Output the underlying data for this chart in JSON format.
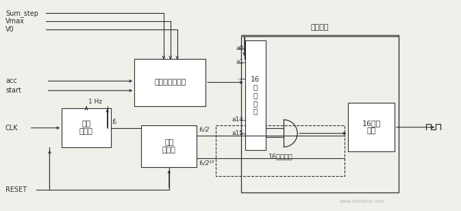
{
  "bg_color": "#f0f0eb",
  "line_color": "#2a2a2a",
  "box_color": "#ffffff",
  "title_text": "反馈脉冲",
  "signals_top": [
    "Sum_step",
    "Vmax",
    "V0"
  ],
  "signals_mid": [
    "acc",
    "start"
  ],
  "signal_clk": "CLK",
  "signal_reset": "RESET",
  "box_pulse_rate": "脉冲速率发生器",
  "box_clock": "时钟\n发生器",
  "box_pulse_gen": "脉冲\n发生器",
  "box_register": "16\n位\n寄\n存\n器",
  "box_or": "16个或\n逻辑",
  "label_1hz": "1 Hz",
  "label_f0": "f₀",
  "label_f0_2": "f₀/2",
  "label_f0_215": "f₀/2¹⁵",
  "label_16and": "16个与逻辑",
  "register_pins": [
    "a0",
    "a1",
    "⋯",
    "a14",
    "a15"
  ],
  "watermark": "www.elecfans.com"
}
